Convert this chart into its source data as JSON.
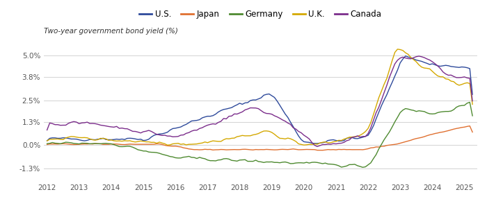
{
  "ylabel": "Two-year government bond yield (%)",
  "legend_entries": [
    "U.S.",
    "Japan",
    "Germany",
    "U.K.",
    "Canada"
  ],
  "colors": {
    "US": "#2E4A9B",
    "Japan": "#E07030",
    "Germany": "#4E8A30",
    "UK": "#D4A800",
    "Canada": "#7B2D8B"
  },
  "yticks": [
    -0.013,
    0.0,
    0.013,
    0.025,
    0.038,
    0.05
  ],
  "ytick_labels": [
    "-1.3%",
    "0.0%",
    "1.3%",
    "2.5%",
    "3.8%",
    "5.0%"
  ],
  "ylim": [
    -0.02,
    0.06
  ],
  "xlim": [
    2011.9,
    2025.4
  ],
  "xticks": [
    2012,
    2013,
    2014,
    2015,
    2016,
    2017,
    2018,
    2019,
    2020,
    2021,
    2022,
    2023,
    2024,
    2025
  ],
  "background": "#FFFFFF",
  "grid_color": "#CCCCCC"
}
